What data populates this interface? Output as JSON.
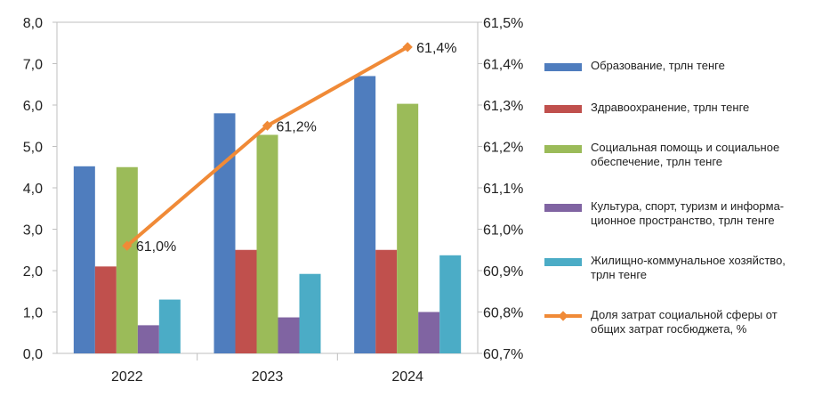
{
  "chart_data": {
    "type": "bar",
    "categories": [
      "2022",
      "2023",
      "2024"
    ],
    "series": [
      {
        "name": "Образование, трлн тенге",
        "values": [
          4.52,
          5.8,
          6.7
        ],
        "color": "#4F7DBE"
      },
      {
        "name": "Здравоохранение, трлн тенге",
        "values": [
          2.1,
          2.5,
          2.5
        ],
        "color": "#C0504D"
      },
      {
        "name": "Социальная помощь и социальное\nобеспечение, трлн тенге",
        "values": [
          4.5,
          5.28,
          6.03
        ],
        "color": "#9BBB59"
      },
      {
        "name": "Культура, спорт, туризм и информа-\nционное пространство, трлн тенге",
        "values": [
          0.68,
          0.87,
          1.0
        ],
        "color": "#8064A2"
      },
      {
        "name": "Жилищно-коммунальное хозяйство,\nтрлн тенге",
        "values": [
          1.3,
          1.92,
          2.37
        ],
        "color": "#4BACC6"
      }
    ],
    "line_series": {
      "name": "Доля затрат социальной сферы от\nобщих затрат госбюджета, %",
      "values": [
        60.96,
        61.25,
        61.44
      ],
      "labels": [
        "61,0%",
        "61,2%",
        "61,4%"
      ],
      "color": "#F08A37",
      "axis": "right"
    },
    "ylim": [
      0,
      8
    ],
    "y_ticks": [
      "0,0",
      "1,0",
      "2,0",
      "3,0",
      "4,0",
      "5,0",
      "6,0",
      "7,0",
      "8,0"
    ],
    "y2lim": [
      60.7,
      61.5
    ],
    "y2_ticks": [
      "60,7%",
      "60,8%",
      "60,9%",
      "61,0%",
      "61,1%",
      "61,2%",
      "61,3%",
      "61,4%",
      "61,5%"
    ],
    "grid": false,
    "legend_position": "right"
  }
}
